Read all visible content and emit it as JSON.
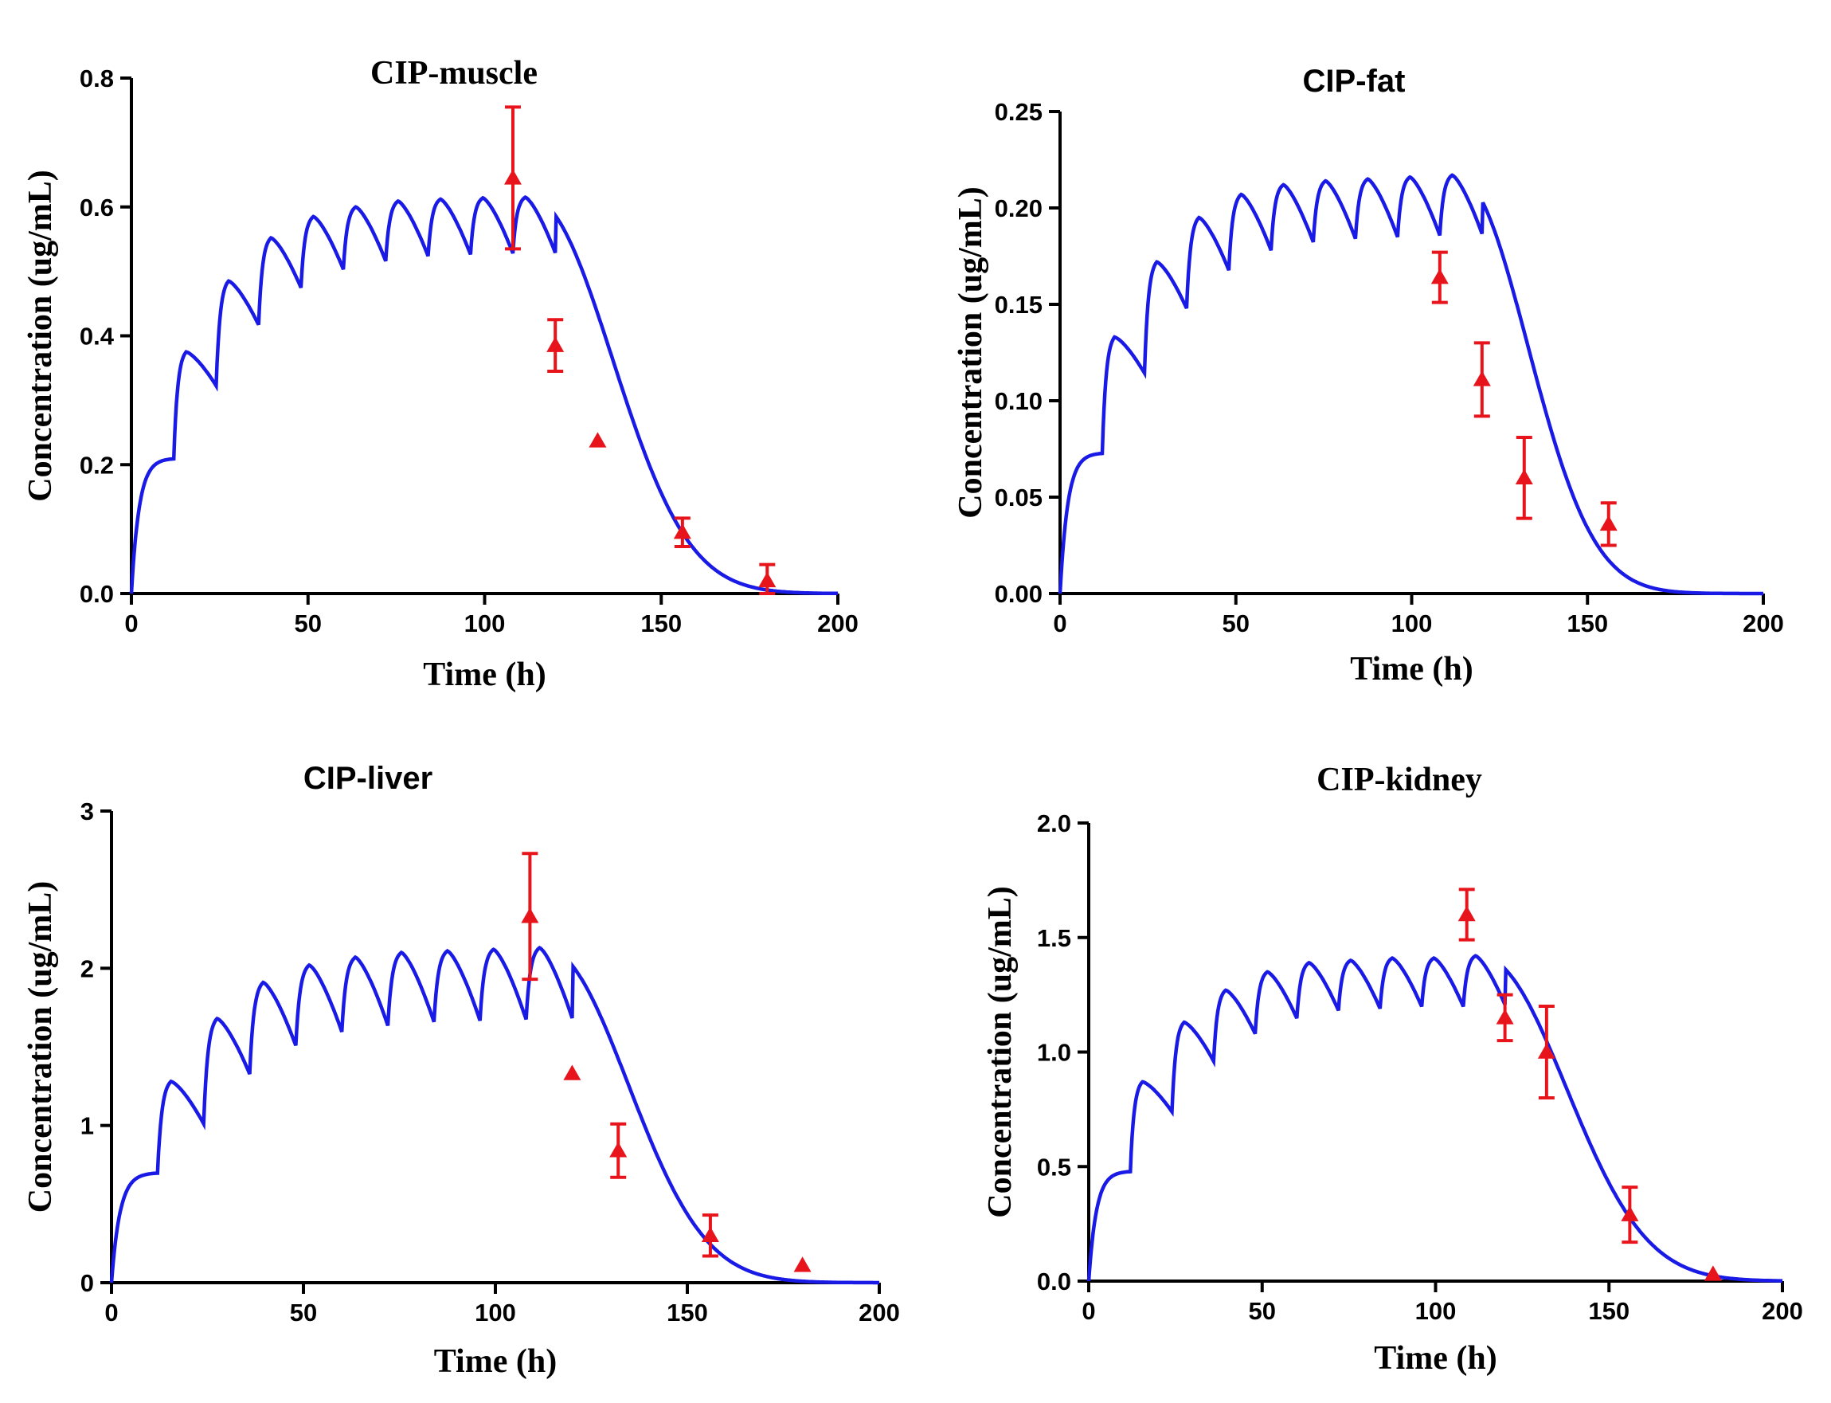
{
  "colors": {
    "model": "#1a1ae6",
    "observed": "#e8141b",
    "axis": "#000000"
  },
  "chart_data": [
    {
      "type": "line",
      "title": "CIP-muscle",
      "xlabel": "Time (h)",
      "ylabel": "Concentration (ug/mL)",
      "xlim": [
        0,
        200
      ],
      "ylim": [
        0,
        0.8
      ],
      "xticks": [
        "0",
        "50",
        "100",
        "150",
        "200"
      ],
      "yticks": [
        "0.0",
        "0.2",
        "0.4",
        "0.6",
        "0.8"
      ],
      "model": {
        "dose_times": [
          12,
          24,
          36,
          48,
          60,
          72,
          84,
          96,
          108
        ],
        "first_peak": 0.21,
        "peaks": [
          0.375,
          0.485,
          0.552,
          0.585,
          0.6,
          0.609,
          0.612,
          0.614,
          0.615,
          0.615
        ],
        "trough_ratio": 0.86,
        "decay_half_life": 15
      },
      "observed": [
        {
          "x": 108,
          "y": 0.645,
          "err": 0.11
        },
        {
          "x": 120,
          "y": 0.385,
          "err": 0.04
        },
        {
          "x": 132,
          "y": 0.237,
          "err": 0
        },
        {
          "x": 156,
          "y": 0.095,
          "err": 0.022
        },
        {
          "x": 180,
          "y": 0.02,
          "err": 0.025
        }
      ]
    },
    {
      "type": "line",
      "title": "CIP-fat",
      "xlabel": "Time (h)",
      "ylabel": "Concentration (ug/mL)",
      "xlim": [
        0,
        200
      ],
      "ylim": [
        0,
        0.25
      ],
      "xticks": [
        "0",
        "50",
        "100",
        "150",
        "200"
      ],
      "yticks": [
        "0.00",
        "0.05",
        "0.10",
        "0.15",
        "0.20",
        "0.25"
      ],
      "model": {
        "dose_times": [
          12,
          24,
          36,
          48,
          60,
          72,
          84,
          96,
          108
        ],
        "first_peak": 0.073,
        "peaks": [
          0.133,
          0.172,
          0.195,
          0.207,
          0.212,
          0.214,
          0.215,
          0.216,
          0.217,
          0.217
        ],
        "trough_ratio": 0.86,
        "decay_half_life": 13
      },
      "observed": [
        {
          "x": 108,
          "y": 0.164,
          "err": 0.013
        },
        {
          "x": 120,
          "y": 0.111,
          "err": 0.019
        },
        {
          "x": 132,
          "y": 0.06,
          "err": 0.021
        },
        {
          "x": 156,
          "y": 0.036,
          "err": 0.011
        }
      ]
    },
    {
      "type": "line",
      "title": "CIP-liver",
      "xlabel": "Time (h)",
      "ylabel": "Concentration (ug/mL)",
      "xlim": [
        0,
        200
      ],
      "ylim": [
        0,
        3
      ],
      "xticks": [
        "0",
        "50",
        "100",
        "150",
        "200"
      ],
      "yticks": [
        "0",
        "1",
        "2",
        "3"
      ],
      "model": {
        "dose_times": [
          12,
          24,
          36,
          48,
          60,
          72,
          84,
          96,
          108
        ],
        "first_peak": 0.7,
        "peaks": [
          1.28,
          1.68,
          1.91,
          2.02,
          2.07,
          2.1,
          2.11,
          2.12,
          2.13,
          2.13
        ],
        "trough_ratio": 0.79,
        "decay_half_life": 14
      },
      "observed": [
        {
          "x": 109,
          "y": 2.33,
          "err": 0.4
        },
        {
          "x": 120,
          "y": 1.33,
          "err": 0
        },
        {
          "x": 132,
          "y": 0.84,
          "err": 0.17
        },
        {
          "x": 156,
          "y": 0.3,
          "err": 0.13
        },
        {
          "x": 180,
          "y": 0.11,
          "err": 0
        }
      ]
    },
    {
      "type": "line",
      "title": "CIP-kidney",
      "xlabel": "Time (h)",
      "ylabel": "Concentration (ug/mL)",
      "xlim": [
        0,
        200
      ],
      "ylim": [
        0,
        2.0
      ],
      "xticks": [
        "0",
        "50",
        "100",
        "150",
        "200"
      ],
      "yticks": [
        "0.0",
        "0.5",
        "1.0",
        "1.5",
        "2.0"
      ],
      "model": {
        "dose_times": [
          12,
          24,
          36,
          48,
          60,
          72,
          84,
          96,
          108
        ],
        "first_peak": 0.48,
        "peaks": [
          0.87,
          1.13,
          1.27,
          1.35,
          1.39,
          1.4,
          1.41,
          1.41,
          1.42,
          1.42
        ],
        "trough_ratio": 0.85,
        "decay_half_life": 16
      },
      "observed": [
        {
          "x": 109,
          "y": 1.6,
          "err": 0.11
        },
        {
          "x": 120,
          "y": 1.15,
          "err": 0.1
        },
        {
          "x": 132,
          "y": 1.0,
          "err": 0.2
        },
        {
          "x": 156,
          "y": 0.29,
          "err": 0.12
        },
        {
          "x": 180,
          "y": 0.03,
          "err": 0
        }
      ]
    }
  ]
}
